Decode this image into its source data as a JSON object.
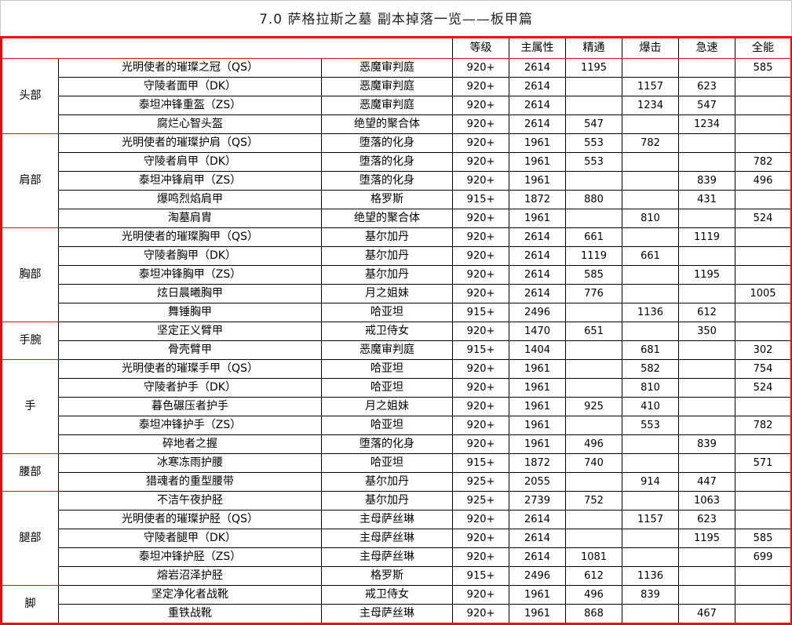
{
  "title": "7.0 萨格拉斯之墓 副本掉落一览——板甲篇",
  "headers": [
    "",
    "",
    "",
    "等级",
    "主属性",
    "精通",
    "爆击",
    "急速",
    "全能"
  ],
  "groups": [
    {
      "part": "头部",
      "rows": [
        [
          "光明使者的璀璨之冠（QS）",
          "恶魔审判庭",
          "920+",
          "2614",
          "1195",
          "",
          "",
          "585"
        ],
        [
          "守陵者面甲（DK）",
          "恶魔审判庭",
          "920+",
          "2614",
          "",
          "1157",
          "623",
          ""
        ],
        [
          "泰坦冲锋重盔（ZS）",
          "恶魔审判庭",
          "920+",
          "2614",
          "",
          "1234",
          "547",
          ""
        ],
        [
          "腐烂心智头盔",
          "绝望的聚合体",
          "920+",
          "2614",
          "547",
          "",
          "1234",
          ""
        ]
      ]
    },
    {
      "part": "肩部",
      "rows": [
        [
          "光明使者的璀璨护肩（QS）",
          "堕落的化身",
          "920+",
          "1961",
          "553",
          "782",
          "",
          ""
        ],
        [
          "守陵者肩甲（DK）",
          "堕落的化身",
          "920+",
          "1961",
          "553",
          "",
          "",
          "782"
        ],
        [
          "泰坦冲锋肩甲（ZS）",
          "堕落的化身",
          "920+",
          "1961",
          "",
          "",
          "839",
          "496"
        ],
        [
          "爆鸣烈焰肩甲",
          "格罗斯",
          "915+",
          "1872",
          "880",
          "",
          "431",
          ""
        ],
        [
          "淘墓肩胄",
          "绝望的聚合体",
          "920+",
          "1961",
          "",
          "810",
          "",
          "524"
        ]
      ]
    },
    {
      "part": "胸部",
      "rows": [
        [
          "光明使者的璀璨胸甲（QS）",
          "基尔加丹",
          "920+",
          "2614",
          "661",
          "",
          "1119",
          ""
        ],
        [
          "守陵者胸甲（DK）",
          "基尔加丹",
          "920+",
          "2614",
          "1119",
          "661",
          "",
          ""
        ],
        [
          "泰坦冲锋胸甲（ZS）",
          "基尔加丹",
          "920+",
          "2614",
          "585",
          "",
          "1195",
          ""
        ],
        [
          "炫日晨曦胸甲",
          "月之姐妹",
          "920+",
          "2614",
          "776",
          "",
          "",
          "1005"
        ],
        [
          "舞锤胸甲",
          "哈亚坦",
          "915+",
          "2496",
          "",
          "1136",
          "612",
          ""
        ]
      ]
    },
    {
      "part": "手腕",
      "rows": [
        [
          "坚定正义臂甲",
          "戒卫侍女",
          "920+",
          "1470",
          "651",
          "",
          "350",
          ""
        ],
        [
          "骨壳臂甲",
          "恶魔审判庭",
          "915+",
          "1404",
          "",
          "681",
          "",
          "302"
        ]
      ]
    },
    {
      "part": "手",
      "rows": [
        [
          "光明使者的璀璨手甲（QS）",
          "哈亚坦",
          "920+",
          "1961",
          "",
          "582",
          "",
          "754"
        ],
        [
          "守陵者护手（DK）",
          "哈亚坦",
          "920+",
          "1961",
          "",
          "810",
          "",
          "524"
        ],
        [
          "暮色碾压者护手",
          "月之姐妹",
          "920+",
          "1961",
          "925",
          "410",
          "",
          ""
        ],
        [
          "泰坦冲锋护手（ZS）",
          "哈亚坦",
          "920+",
          "1961",
          "",
          "553",
          "",
          "782"
        ],
        [
          "碎地者之握",
          "堕落的化身",
          "920+",
          "1961",
          "496",
          "",
          "839",
          ""
        ]
      ]
    },
    {
      "part": "腰部",
      "rows": [
        [
          "冰寒冻雨护腰",
          "哈亚坦",
          "915+",
          "1872",
          "740",
          "",
          "",
          "571"
        ],
        [
          "猎魂者的重型腰带",
          "基尔加丹",
          "925+",
          "2055",
          "",
          "914",
          "447",
          ""
        ]
      ]
    },
    {
      "part": "腿部",
      "rows": [
        [
          "不洁午夜护胫",
          "基尔加丹",
          "925+",
          "2739",
          "752",
          "",
          "1063",
          ""
        ],
        [
          "光明使者的璀璨护胫（QS）",
          "主母萨丝琳",
          "920+",
          "2614",
          "",
          "1157",
          "623",
          ""
        ],
        [
          "守陵者腿甲（DK）",
          "主母萨丝琳",
          "920+",
          "2614",
          "",
          "",
          "1195",
          "585"
        ],
        [
          "泰坦冲锋护胫（ZS）",
          "主母萨丝琳",
          "920+",
          "2614",
          "1081",
          "",
          "",
          "699"
        ],
        [
          "熔岩沼泽护胫",
          "格罗斯",
          "915+",
          "2496",
          "612",
          "1136",
          "",
          ""
        ]
      ]
    },
    {
      "part": "脚",
      "rows": [
        [
          "坚定净化者战靴",
          "戒卫侍女",
          "920+",
          "1961",
          "496",
          "839",
          "",
          ""
        ],
        [
          "重铁战靴",
          "主母萨丝琳",
          "920+",
          "1961",
          "868",
          "",
          "467",
          ""
        ]
      ]
    }
  ]
}
